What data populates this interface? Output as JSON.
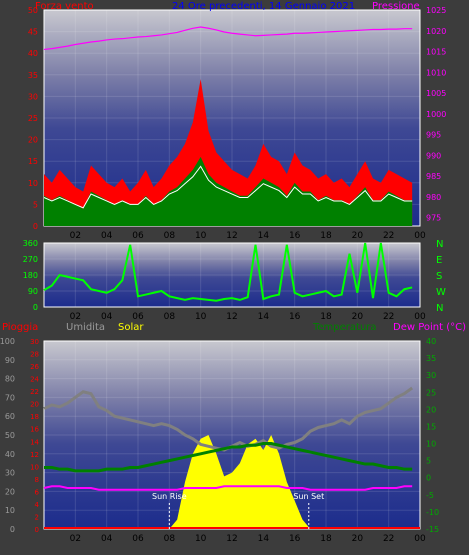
{
  "header": {
    "wind_label": "Forza vento",
    "pressure_label": "Pressione",
    "date_title": "24 Ore precedenti, 14 Gennaio 2021",
    "rain_label": "Pioggia",
    "humidity_label": "Umidita",
    "solar_label": "Solar",
    "temp_label": "Temperatura",
    "dewpoint_label": "Dew Point (°C)"
  },
  "colors": {
    "wind": "#ff0000",
    "wind_avg": "#008000",
    "pressure": "#ff00ff",
    "direction": "#00ff00",
    "rain": "#ff0000",
    "humidity": "#808080",
    "solar": "#ffff00",
    "temperature": "#008000",
    "dewpoint": "#ff00ff",
    "frame": "#ffffff"
  },
  "chart_data": [
    {
      "id": "wind-pressure",
      "type": "line",
      "title": "24 Ore precedenti, 14 Gennaio 2021",
      "x_ticks": [
        "02",
        "04",
        "06",
        "08",
        "10",
        "12",
        "14",
        "16",
        "18",
        "20",
        "22",
        "00"
      ],
      "y_left_ticks": [
        "0",
        "5",
        "10",
        "15",
        "20",
        "25",
        "30",
        "35",
        "40",
        "45",
        "50"
      ],
      "y_right_ticks": [
        "975",
        "980",
        "985",
        "990",
        "995",
        "1000",
        "1005",
        "1010",
        "1015",
        "1020",
        "1025"
      ],
      "ylabel_left": "Forza vento",
      "ylabel_right": "Pressione",
      "ylim_left": [
        0,
        50
      ],
      "ylim_right": [
        973,
        1025
      ],
      "x_hours": [
        0,
        0.5,
        1,
        1.5,
        2,
        2.5,
        3,
        3.5,
        4,
        4.5,
        5,
        5.5,
        6,
        6.5,
        7,
        7.5,
        8,
        8.5,
        9,
        9.5,
        10,
        10.5,
        11,
        11.5,
        12,
        12.5,
        13,
        13.5,
        14,
        14.5,
        15,
        15.5,
        16,
        16.5,
        17,
        17.5,
        18,
        18.5,
        19,
        19.5,
        20,
        20.5,
        21,
        21.5,
        22,
        22.5,
        23,
        23.5
      ],
      "series": [
        {
          "name": "Forza vento",
          "values": [
            12,
            10,
            13,
            11,
            9,
            8,
            14,
            12,
            10,
            9,
            11,
            8,
            10,
            13,
            9,
            11,
            14,
            16,
            19,
            24,
            34,
            22,
            17,
            15,
            13,
            12,
            11,
            14,
            19,
            16,
            15,
            12,
            17,
            14,
            13,
            11,
            12,
            10,
            11,
            9,
            12,
            15,
            11,
            10,
            13,
            12,
            11,
            10
          ]
        },
        {
          "name": "Media",
          "values": [
            7,
            6,
            7,
            6,
            5,
            4,
            8,
            7,
            6,
            5,
            6,
            5,
            5,
            7,
            5,
            6,
            8,
            9,
            11,
            13,
            16,
            12,
            10,
            9,
            8,
            7,
            7,
            9,
            11,
            10,
            9,
            7,
            10,
            8,
            8,
            6,
            7,
            6,
            6,
            5,
            7,
            9,
            6,
            6,
            8,
            7,
            6,
            6
          ]
        },
        {
          "name": "Pressione",
          "values": [
            1015.5,
            1015.7,
            1016.0,
            1016.3,
            1016.7,
            1017.0,
            1017.3,
            1017.5,
            1017.8,
            1018.0,
            1018.1,
            1018.3,
            1018.5,
            1018.6,
            1018.8,
            1019.0,
            1019.3,
            1019.6,
            1020.1,
            1020.6,
            1020.9,
            1020.6,
            1020.2,
            1019.7,
            1019.4,
            1019.2,
            1019.0,
            1018.8,
            1018.9,
            1019.0,
            1019.1,
            1019.2,
            1019.4,
            1019.4,
            1019.5,
            1019.6,
            1019.7,
            1019.8,
            1019.9,
            1020.0,
            1020.1,
            1020.2,
            1020.3,
            1020.3,
            1020.4,
            1020.4,
            1020.5,
            1020.5
          ]
        }
      ]
    },
    {
      "id": "wind-direction",
      "type": "line",
      "y_left_ticks": [
        "0",
        "90",
        "180",
        "270",
        "360"
      ],
      "y_right_ticks": [
        "N",
        "E",
        "S",
        "W",
        "N"
      ],
      "ylim": [
        0,
        360
      ],
      "x_ticks": [
        "02",
        "04",
        "06",
        "08",
        "10",
        "12",
        "14",
        "16",
        "18",
        "20",
        "22",
        "00"
      ],
      "x_hours": [
        0,
        0.5,
        1,
        1.5,
        2,
        2.5,
        3,
        3.5,
        4,
        4.5,
        5,
        5.5,
        6,
        6.5,
        7,
        7.5,
        8,
        8.5,
        9,
        9.5,
        10,
        10.5,
        11,
        11.5,
        12,
        12.5,
        13,
        13.5,
        14,
        14.5,
        15,
        15.5,
        16,
        16.5,
        17,
        17.5,
        18,
        18.5,
        19,
        19.5,
        20,
        20.5,
        21,
        21.5,
        22,
        22.5,
        23,
        23.5
      ],
      "values": [
        95,
        120,
        180,
        170,
        160,
        150,
        100,
        90,
        80,
        100,
        150,
        350,
        60,
        70,
        80,
        90,
        60,
        50,
        40,
        50,
        45,
        40,
        35,
        45,
        50,
        40,
        55,
        350,
        45,
        60,
        70,
        350,
        80,
        60,
        70,
        80,
        90,
        60,
        70,
        300,
        80,
        360,
        50,
        360,
        80,
        60,
        100,
        110
      ]
    },
    {
      "id": "weather",
      "type": "line",
      "x_ticks": [
        "02",
        "04",
        "06",
        "08",
        "10",
        "12",
        "14",
        "16",
        "18",
        "20",
        "22",
        "00"
      ],
      "sunrise_label": "Sun Rise",
      "sunset_label": "Sun Set",
      "sunrise_hour": 8.0,
      "sunset_hour": 16.9,
      "y_left_outer_ticks": [
        "0",
        "10",
        "20",
        "30",
        "40",
        "50",
        "60",
        "70",
        "80",
        "90",
        "100"
      ],
      "y_left_inner_ticks": [
        "0",
        "2",
        "4",
        "6",
        "8",
        "10",
        "12",
        "14",
        "16",
        "18",
        "20",
        "22",
        "24",
        "26",
        "28",
        "30"
      ],
      "y_right_ticks": [
        "-15",
        "-10",
        "-5",
        "0",
        "5",
        "10",
        "15",
        "20",
        "25",
        "30",
        "35",
        "40"
      ],
      "x_hours": [
        0,
        0.5,
        1,
        1.5,
        2,
        2.5,
        3,
        3.5,
        4,
        4.5,
        5,
        5.5,
        6,
        6.5,
        7,
        7.5,
        8,
        8.5,
        9,
        9.5,
        10,
        10.5,
        11,
        11.5,
        12,
        12.5,
        13,
        13.5,
        14,
        14.5,
        15,
        15.5,
        16,
        16.5,
        17,
        17.5,
        18,
        18.5,
        19,
        19.5,
        20,
        20.5,
        21,
        21.5,
        22,
        22.5,
        23,
        23.5
      ],
      "series": [
        {
          "name": "Umidita",
          "values": [
            64,
            66,
            65,
            67,
            70,
            73,
            72,
            65,
            63,
            60,
            59,
            58,
            57,
            56,
            55,
            56,
            55,
            53,
            50,
            48,
            45,
            44,
            43,
            42,
            44,
            46,
            44,
            45,
            47,
            44,
            43,
            45,
            46,
            48,
            52,
            54,
            55,
            56,
            58,
            56,
            60,
            62,
            63,
            64,
            67,
            70,
            72,
            75
          ]
        },
        {
          "name": "Temperatura",
          "values": [
            3,
            3,
            2.5,
            2.5,
            2,
            2,
            2,
            2,
            2.5,
            2.5,
            2.5,
            3,
            3,
            3.5,
            4,
            4.5,
            5,
            5.5,
            6,
            6.5,
            7,
            7.5,
            8,
            8.5,
            9,
            9,
            9.5,
            9.5,
            10,
            10,
            9.5,
            9,
            8.5,
            8,
            7.5,
            7,
            6.5,
            6,
            5.5,
            5,
            4.5,
            4,
            4,
            3.5,
            3,
            3,
            2.5,
            2.5
          ]
        },
        {
          "name": "Dew Point",
          "values": [
            -3,
            -2.5,
            -2.5,
            -3,
            -3,
            -3,
            -3,
            -3.5,
            -3.5,
            -3.5,
            -3.5,
            -3.5,
            -3.5,
            -3.5,
            -3.5,
            -3.5,
            -3.5,
            -3.5,
            -3,
            -3,
            -3,
            -3,
            -3,
            -2.5,
            -2.5,
            -2.5,
            -2.5,
            -2.5,
            -2.5,
            -2.5,
            -2.5,
            -3,
            -3,
            -3,
            -3.5,
            -3.5,
            -3.5,
            -3.5,
            -3.5,
            -3.5,
            -3.5,
            -3.5,
            -3,
            -3,
            -3,
            -3,
            -2.5,
            -2.5
          ]
        },
        {
          "name": "Solar",
          "values": [
            0,
            0,
            0,
            0,
            0,
            0,
            0,
            0,
            0,
            0,
            0,
            0,
            0,
            0,
            0,
            0,
            0,
            0.05,
            0.25,
            0.4,
            0.48,
            0.5,
            0.4,
            0.28,
            0.3,
            0.35,
            0.45,
            0.48,
            0.42,
            0.5,
            0.4,
            0.25,
            0.15,
            0.05,
            0,
            0,
            0,
            0,
            0,
            0,
            0,
            0,
            0,
            0,
            0,
            0,
            0,
            0
          ]
        },
        {
          "name": "Pioggia",
          "values": [
            0,
            0,
            0,
            0,
            0,
            0,
            0,
            0,
            0,
            0,
            0,
            0,
            0,
            0,
            0,
            0,
            0,
            0,
            0,
            0,
            0,
            0,
            0,
            0,
            0,
            0,
            0,
            0,
            0,
            0,
            0,
            0,
            0,
            0,
            0,
            0,
            0,
            0,
            0,
            0,
            0,
            0,
            0,
            0,
            0,
            0,
            0,
            0
          ]
        }
      ]
    }
  ]
}
